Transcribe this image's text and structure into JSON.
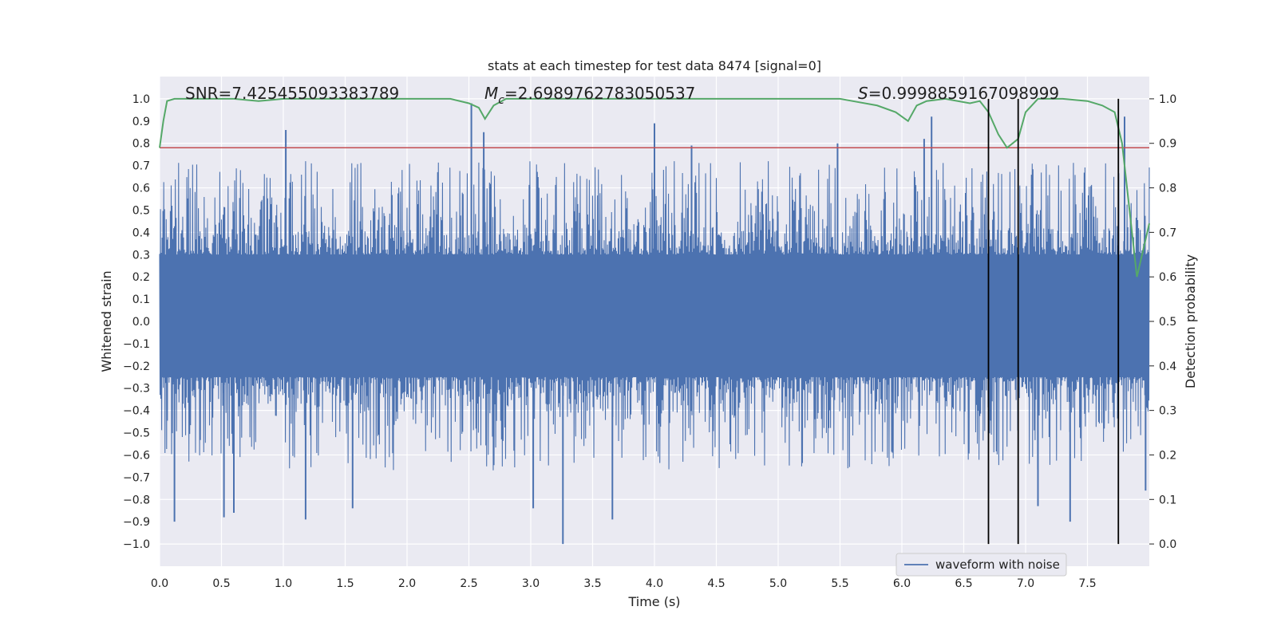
{
  "chart_data": {
    "type": "line",
    "title": "stats at each timestep for test data 8474 [signal=0]",
    "xlabel": "Time (s)",
    "ylabel": "Whitened strain",
    "y2label": "Detection probability",
    "xlim": [
      0.0,
      8.0
    ],
    "ylim": [
      -1.1,
      1.1
    ],
    "y2lim": [
      -0.05,
      1.05
    ],
    "grid": true,
    "x_ticks": [
      "0.0",
      "0.5",
      "1.0",
      "1.5",
      "2.0",
      "2.5",
      "3.0",
      "3.5",
      "4.0",
      "4.5",
      "5.0",
      "5.5",
      "6.0",
      "6.5",
      "7.0",
      "7.5"
    ],
    "y_ticks": [
      "1.0",
      "0.9",
      "0.8",
      "0.7",
      "0.6",
      "0.5",
      "0.4",
      "0.3",
      "0.2",
      "0.1",
      "0.0",
      "−0.1",
      "−0.2",
      "−0.3",
      "−0.4",
      "−0.5",
      "−0.6",
      "−0.7",
      "−0.8",
      "−0.9",
      "−1.0"
    ],
    "y2_ticks": [
      "1.0",
      "0.9",
      "0.8",
      "0.7",
      "0.6",
      "0.5",
      "0.4",
      "0.3",
      "0.2",
      "0.1",
      "0.0"
    ],
    "annotations": {
      "snr": "SNR=7.425455093383789",
      "mc_symbol": "M",
      "mc_sub": "c",
      "mc_value": "=2.6989762783050537",
      "s_symbol": "S",
      "s_value": "=0.9998859167098999"
    },
    "legend": {
      "label": "waveform with noise",
      "placement": "lower-right"
    },
    "colors": {
      "waveform": "#4c72b0",
      "probability": "#55a868",
      "threshold": "#c44e52",
      "markers": "#000000",
      "plot_bg": "#eaeaf2",
      "grid": "#ffffff"
    },
    "threshold_y": 0.78,
    "marker_times": [
      6.7,
      6.94,
      7.75
    ],
    "waveform": {
      "name": "waveform with noise",
      "duration": 8.0,
      "envelope_pos": 0.3,
      "envelope_neg": -0.25,
      "spikes": [
        {
          "t": 0.12,
          "v": -0.9
        },
        {
          "t": 0.52,
          "v": -0.88
        },
        {
          "t": 0.6,
          "v": -0.86
        },
        {
          "t": 1.02,
          "v": 0.86
        },
        {
          "t": 1.18,
          "v": -0.89
        },
        {
          "t": 1.56,
          "v": -0.84
        },
        {
          "t": 2.52,
          "v": 0.98
        },
        {
          "t": 2.62,
          "v": 0.85
        },
        {
          "t": 3.02,
          "v": -0.84
        },
        {
          "t": 3.26,
          "v": -1.0
        },
        {
          "t": 3.66,
          "v": -0.89
        },
        {
          "t": 4.0,
          "v": 0.89
        },
        {
          "t": 4.3,
          "v": 0.79
        },
        {
          "t": 5.48,
          "v": 0.8
        },
        {
          "t": 6.18,
          "v": 0.82
        },
        {
          "t": 6.24,
          "v": 0.92
        },
        {
          "t": 7.1,
          "v": -0.83
        },
        {
          "t": 7.36,
          "v": -0.9
        },
        {
          "t": 7.8,
          "v": 0.92
        },
        {
          "t": 7.97,
          "v": -0.76
        }
      ]
    },
    "probability": {
      "name": "detection probability",
      "t": [
        0.0,
        0.03,
        0.06,
        0.12,
        0.3,
        0.6,
        0.8,
        1.0,
        1.5,
        2.0,
        2.35,
        2.5,
        2.58,
        2.63,
        2.7,
        2.8,
        3.0,
        4.0,
        5.0,
        5.5,
        5.6,
        5.8,
        5.95,
        6.05,
        6.12,
        6.2,
        6.35,
        6.55,
        6.63,
        6.7,
        6.78,
        6.85,
        6.94,
        7.0,
        7.1,
        7.3,
        7.5,
        7.62,
        7.72,
        7.78,
        7.84,
        7.9,
        7.95,
        8.0
      ],
      "p": [
        0.89,
        0.95,
        0.995,
        1.0,
        1.0,
        1.0,
        0.995,
        1.0,
        1.0,
        1.0,
        1.0,
        0.99,
        0.98,
        0.955,
        0.985,
        1.0,
        1.0,
        1.0,
        1.0,
        1.0,
        0.995,
        0.985,
        0.97,
        0.95,
        0.985,
        0.995,
        1.0,
        0.99,
        0.995,
        0.97,
        0.92,
        0.89,
        0.91,
        0.97,
        1.0,
        1.0,
        0.995,
        0.985,
        0.97,
        0.9,
        0.75,
        0.6,
        0.66,
        0.72
      ]
    }
  }
}
